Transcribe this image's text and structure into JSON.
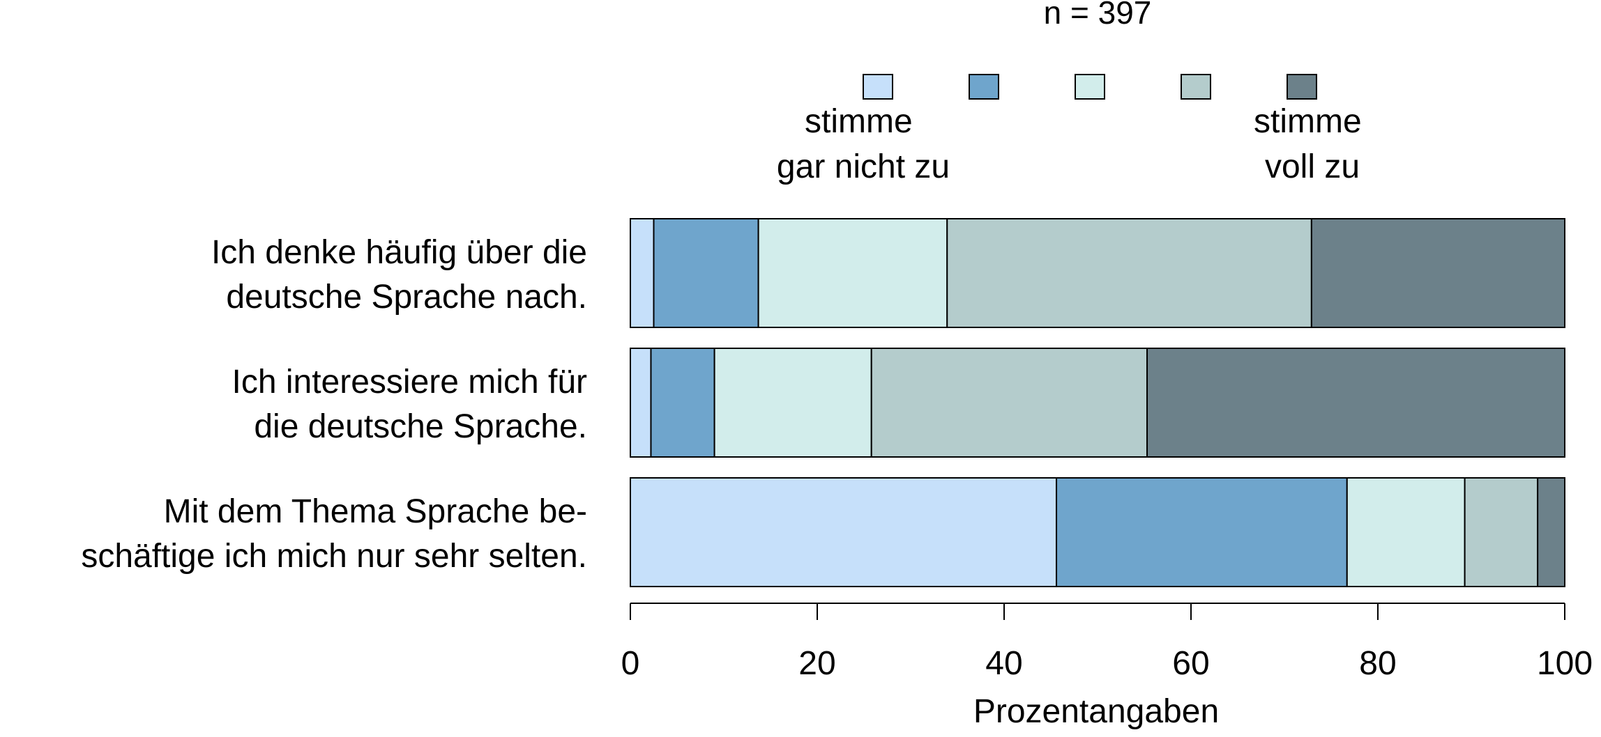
{
  "chart_data": {
    "type": "bar",
    "orientation": "horizontal",
    "stacked": true,
    "title": "n = 397",
    "xlabel": "Prozentangaben",
    "ylabel": "",
    "xlim": [
      0,
      100
    ],
    "x_ticks": [
      "0",
      "20",
      "40",
      "60",
      "80",
      "100"
    ],
    "grid": false,
    "legend_placement": "top",
    "legend_low_label": "stimme gar nicht zu",
    "legend_low_lines": [
      "stimme",
      "gar nicht zu"
    ],
    "legend_high_label": "stimme voll zu",
    "legend_high_lines": [
      "stimme",
      "voll zu"
    ],
    "categories": [
      "Ich denke häufig über die deutsche Sprache nach.",
      "Ich interessiere mich für die deutsche Sprache.",
      "Mit dem Thema Sprache beschäftige ich mich nur sehr selten."
    ],
    "category_lines": [
      [
        "Ich denke häufig über die",
        "deutsche Sprache nach."
      ],
      [
        "Ich interessiere mich für",
        "die deutsche Sprache."
      ],
      [
        "Mit dem Thema Sprache be-",
        "schäftige ich mich nur sehr selten."
      ]
    ],
    "series": [
      {
        "values": [
          2.5,
          2.2,
          45.6
        ]
      },
      {
        "values": [
          11.2,
          6.8,
          31.1
        ]
      },
      {
        "values": [
          20.2,
          16.8,
          12.6
        ]
      },
      {
        "values": [
          39.0,
          29.5,
          7.8
        ]
      },
      {
        "values": [
          27.1,
          44.7,
          2.9
        ]
      }
    ],
    "colors": [
      "#c6e0fa",
      "#6fa5cc",
      "#d2edeb",
      "#b4cccc",
      "#6c818a"
    ]
  }
}
